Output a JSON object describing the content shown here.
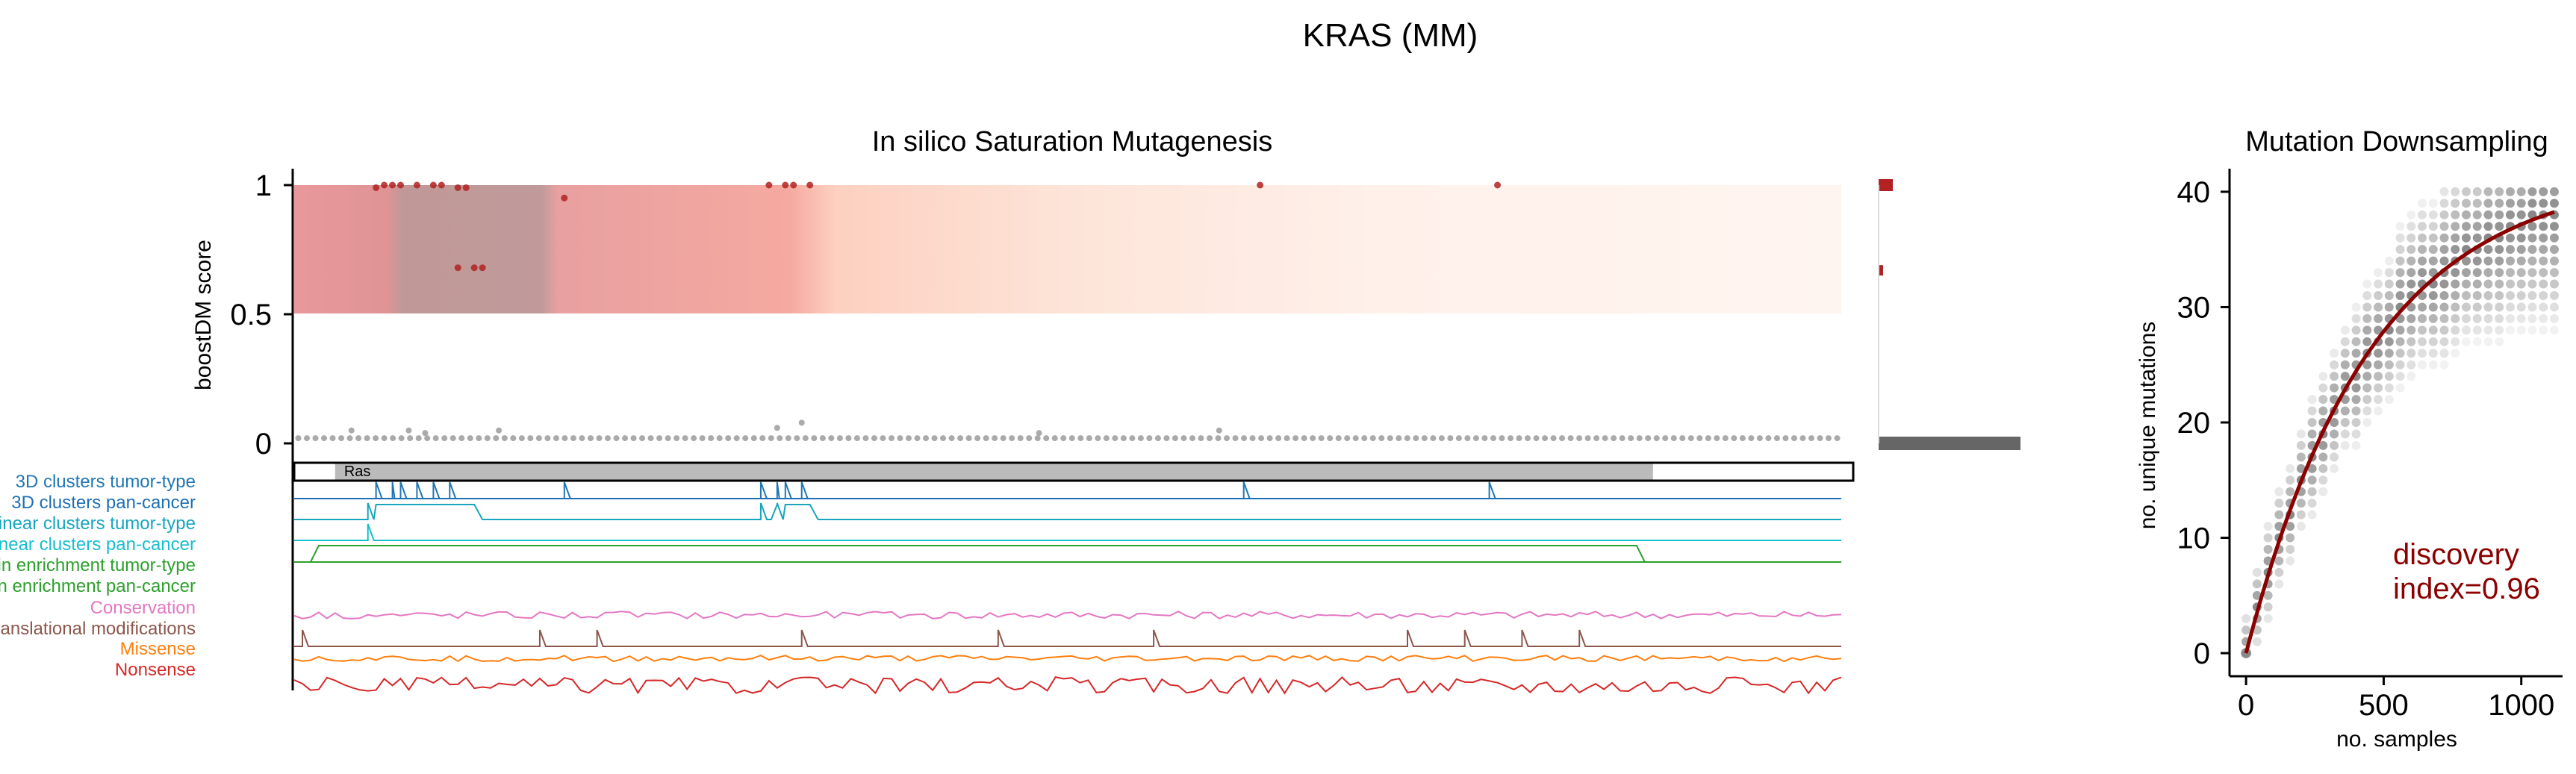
{
  "figure_title": "KRAS (MM)",
  "chart_data": [
    {
      "type": "scatter",
      "title": "In silico Saturation Mutagenesis",
      "ylabel": "boostDM score",
      "xlabel": "",
      "xlim": [
        0,
        189
      ],
      "ylim": [
        0,
        1
      ],
      "yticks": [
        "0",
        "0.5",
        "1"
      ],
      "grid": false,
      "background_gradient": {
        "y_range": [
          0.5,
          1
        ],
        "colors": [
          "#e8989a",
          "#c09898",
          "#e8a0a0",
          "#f5a9a0",
          "#fde0d5",
          "#fff5f0"
        ]
      },
      "driver_points": {
        "color": "#b22222",
        "x": [
          10,
          11,
          12,
          13,
          15,
          17,
          18,
          20,
          21,
          33,
          58,
          60,
          61,
          63,
          118,
          147
        ],
        "y": [
          0.99,
          1,
          1,
          1,
          1,
          1,
          1,
          0.99,
          0.99,
          0.95,
          1,
          1,
          1,
          1,
          1,
          1
        ]
      },
      "driver_points_mid": {
        "color": "#b22222",
        "x": [
          20,
          22,
          23
        ],
        "y": [
          0.68,
          0.68,
          0.68
        ]
      },
      "passenger_points": {
        "color": "#aaaaaa",
        "y_level": 0.02,
        "count": 180,
        "raised_x": [
          7,
          14,
          16,
          25,
          59,
          62,
          91,
          113
        ],
        "raised_y": [
          0.05,
          0.05,
          0.04,
          0.05,
          0.06,
          0.08,
          0.04,
          0.05
        ]
      },
      "side_histogram": {
        "bins": [
          "1",
          "0.67",
          "0"
        ],
        "values": [
          1,
          0.3,
          10
        ],
        "colors": [
          "#b22222",
          "#b22222",
          "#666666"
        ]
      },
      "domain_track": {
        "length": 189,
        "domains": [
          {
            "name": "Ras",
            "start": 5,
            "end": 166,
            "color": "#bbbbbb"
          }
        ]
      },
      "feature_tracks": [
        {
          "name": "3D clusters tumor-type",
          "color": "#1f77b4",
          "peaks": [
            10,
            12,
            13,
            15,
            17,
            19,
            33,
            57,
            59,
            60,
            62,
            116,
            146
          ]
        },
        {
          "name": "3D clusters pan-cancer",
          "color": "#1f6fb4",
          "peaks": []
        },
        {
          "name": "Linear clusters tumor-type",
          "color": "#17a5be",
          "peaks": [
            9,
            57,
            59
          ],
          "plateaus": [
            [
              10,
              22
            ],
            [
              59,
              63
            ]
          ]
        },
        {
          "name": "Linear clusters pan-cancer",
          "color": "#17becf",
          "peaks": [
            9
          ],
          "plateaus": []
        },
        {
          "name": "Domain enrichment tumor-type",
          "color": "#2ca02c",
          "plateaus": [
            [
              3,
              164
            ]
          ]
        },
        {
          "name": "Domain enrichment pan-cancer",
          "color": "#2ca02c",
          "plateaus": []
        },
        {
          "name": "Conservation",
          "color": "#e377c2",
          "noise": true
        },
        {
          "name": "Post-translational modifications",
          "color": "#8c564b",
          "peaks": [
            1,
            30,
            37,
            62,
            86,
            105,
            136,
            143,
            150,
            157
          ]
        },
        {
          "name": "Missense",
          "color": "#ff7f0e",
          "noise": true
        },
        {
          "name": "Nonsense",
          "color": "#d62728",
          "noise": true
        }
      ]
    },
    {
      "type": "scatter",
      "title": "Mutation Downsampling",
      "xlabel": "no. samples",
      "ylabel": "no. unique mutations",
      "xlim": [
        -60,
        1150
      ],
      "ylim": [
        -2,
        42
      ],
      "xticks": [
        0,
        500,
        1000
      ],
      "yticks": [
        0,
        10,
        20,
        30,
        40
      ],
      "curve": {
        "color": "#8b0000",
        "y_max": 41.8,
        "rate": 0.0022,
        "x_end": 1120
      },
      "annotation": {
        "text_line1": "discovery",
        "text_line2": "index=0.96",
        "color": "#8b0000"
      }
    }
  ]
}
